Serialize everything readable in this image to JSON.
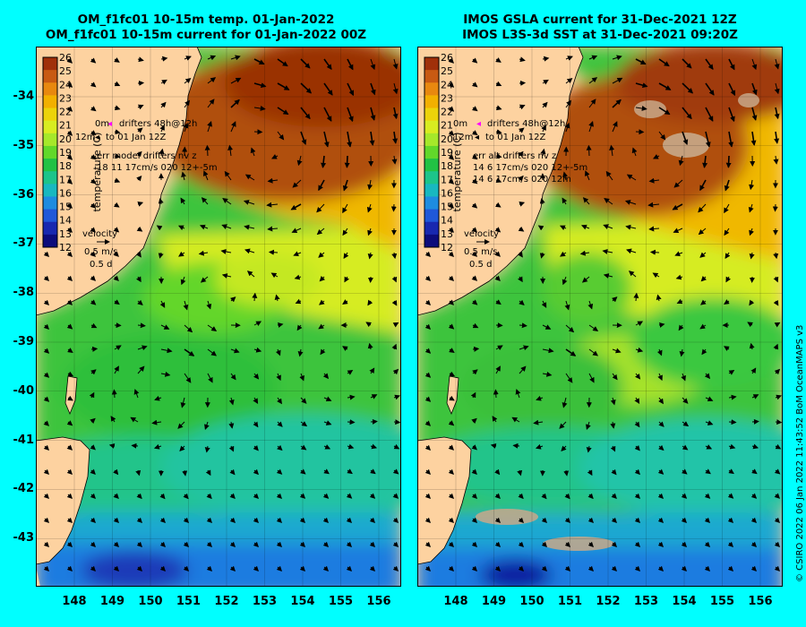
{
  "left_panel": {
    "title_line1": "OM_f1fc01 10-15m temp. 01-Jan-2022",
    "title_line2": "OM_f1fc01 10-15m current for 01-Jan-2022 00Z",
    "legend": {
      "drifters_line1": "drifters 48h@12h",
      "drifters_line2": "to 01 Jan 12Z",
      "depth_0": "0m",
      "depth_12": "12m",
      "err_title": "err model drifters nv z",
      "err_line1": "18 11 17cm/s 020 12+-5m",
      "err_line2": ""
    }
  },
  "right_panel": {
    "title_line1": "IMOS GSLA current for 31-Dec-2021 12Z",
    "title_line2": "IMOS L3S-3d SST at 31-Dec-2021 09:20Z",
    "legend": {
      "drifters_line1": "drifters 48h@12h",
      "drifters_line2": "to 01 Jan 12Z",
      "depth_0": "0m",
      "depth_12": "12m",
      "err_title": "err alt drifters nv z",
      "err_line1": "14 6 17cm/s 020 12+-5m",
      "err_line2": "14 6 17cm/s 020 12m"
    }
  },
  "colorbar": {
    "label": "temperature (C)",
    "ticks": [
      "26",
      "25",
      "24",
      "23",
      "22",
      "21",
      "20",
      "19",
      "18",
      "17",
      "16",
      "15",
      "14",
      "13",
      "12"
    ],
    "colors": [
      "#a0300a",
      "#c85a12",
      "#e8880f",
      "#f2b000",
      "#ecd30a",
      "#d8ec20",
      "#a6e82a",
      "#62d82a",
      "#22c244",
      "#1cc48a",
      "#18b8c0",
      "#1e8ce0",
      "#2058d8",
      "#1828b0",
      "#0c0c7c"
    ]
  },
  "velocity_key": {
    "label": "velocity",
    "speed": "0.5 m/s",
    "duration": "0.5 d"
  },
  "axes": {
    "lon_labels": [
      "148",
      "149",
      "150",
      "151",
      "152",
      "153",
      "154",
      "155",
      "156"
    ],
    "lat_labels": [
      "-34",
      "-35",
      "-36",
      "-37",
      "-38",
      "-39",
      "-40",
      "-41",
      "-42",
      "-43"
    ]
  },
  "credit": "© CSIRO 2022   06 Jan 2022 11:43:52 BoM OceanMAPS v3",
  "colors": {
    "background": "#00ffff",
    "land": "#fdd2a0",
    "missing": "#c8a88a"
  }
}
